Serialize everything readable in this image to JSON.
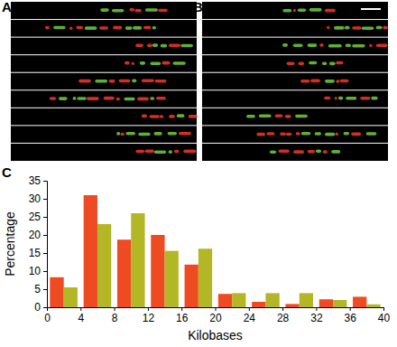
{
  "figure": {
    "panel_labels": [
      "A",
      "B",
      "C"
    ]
  },
  "chart_data": {
    "type": "histogram",
    "x_label": "Kilobases",
    "y_label": "Percentage",
    "bins": [
      0,
      4,
      8,
      12,
      16,
      20,
      24,
      28,
      32,
      36,
      40
    ],
    "series": [
      {
        "color": "#ef4b23",
        "values": [
          8.3,
          31,
          18.7,
          20,
          11.8,
          3.7,
          1.5,
          0.9,
          2.2,
          2.9
        ]
      },
      {
        "color": "#b3b625",
        "values": [
          5.5,
          23,
          26,
          15.6,
          16.2,
          3.9,
          3.9,
          3.9,
          2.0,
          0.8
        ]
      }
    ],
    "xlim": [
      0,
      40
    ],
    "xticks": [
      0,
      4,
      8,
      12,
      16,
      20,
      24,
      28,
      32,
      36,
      40
    ],
    "ylim": [
      0,
      35
    ],
    "yticks": [
      0,
      5,
      10,
      15,
      20,
      25,
      30,
      35
    ],
    "grid": false
  }
}
